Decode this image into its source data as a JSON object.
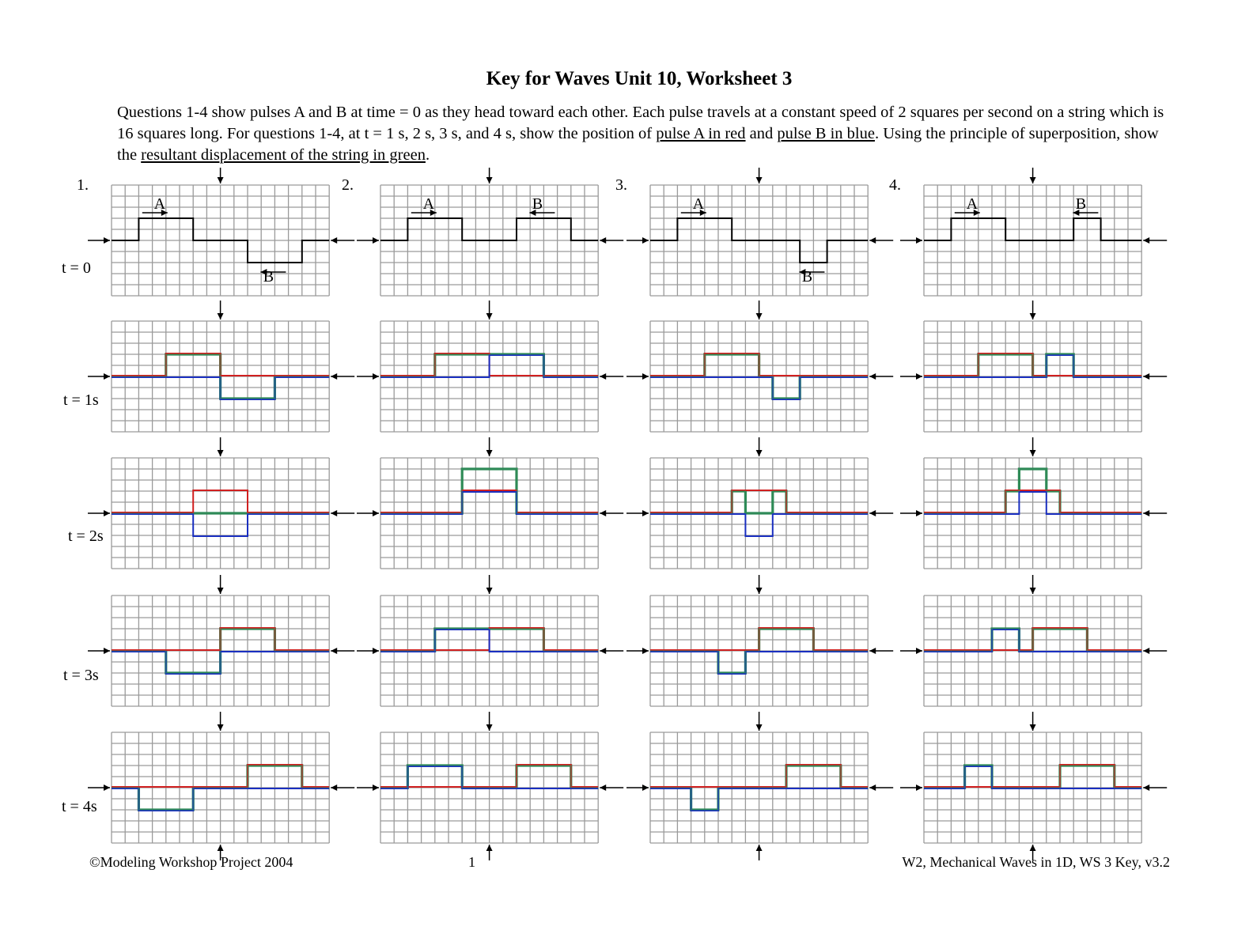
{
  "title": "Key for Waves Unit 10, Worksheet 3",
  "intro": {
    "part1": "Questions 1-4 show pulses A and B at time = 0 as they head toward each other. Each pulse travels at a constant speed of 2 squares per second on a string which is 16 squares long. For questions 1-4, at t = 1 s, 2 s, 3 s, and 4 s, show  the position of ",
    "u1": "pulse A in red",
    "part2": " and ",
    "u2": "pulse B in blue",
    "part3": ". Using the principle of superposition, show the ",
    "u3": "resultant displacement of the string in green",
    "part4": "."
  },
  "time_labels": [
    "t = 0",
    "t = 1s",
    "t = 2s",
    "t = 3s",
    "t = 4s"
  ],
  "problems": [
    {
      "number": "1.",
      "pulse_a": {
        "label": "A",
        "start": 2,
        "end": 6,
        "height": 2
      },
      "pulse_b": {
        "label": "B",
        "start": 10,
        "end": 14,
        "height": -2
      }
    },
    {
      "number": "2.",
      "pulse_a": {
        "label": "A",
        "start": 2,
        "end": 6,
        "height": 2
      },
      "pulse_b": {
        "label": "B",
        "start": 10,
        "end": 14,
        "height": 2
      }
    },
    {
      "number": "3.",
      "pulse_a": {
        "label": "A",
        "start": 2,
        "end": 6,
        "height": 2
      },
      "pulse_b": {
        "label": "B",
        "start": 11,
        "end": 13,
        "height": -2
      }
    },
    {
      "number": "4.",
      "pulse_a": {
        "label": "A",
        "start": 2,
        "end": 6,
        "height": 2
      },
      "pulse_b": {
        "label": "B",
        "start": 11,
        "end": 13,
        "height": 2
      }
    }
  ],
  "grid": {
    "columns": 16,
    "rows": 10,
    "speed_squares_per_s": 2
  },
  "colors": {
    "pulse_a": "#d02020",
    "pulse_b": "#1a2fc0",
    "resultant": "#2e8b57",
    "initial": "#000000",
    "grid": "#9a9a9a"
  },
  "footer": {
    "left": "©Modeling Workshop Project 2004",
    "page": "1",
    "right": "W2, Mechanical Waves in 1D, WS 3 Key, v3.2"
  }
}
